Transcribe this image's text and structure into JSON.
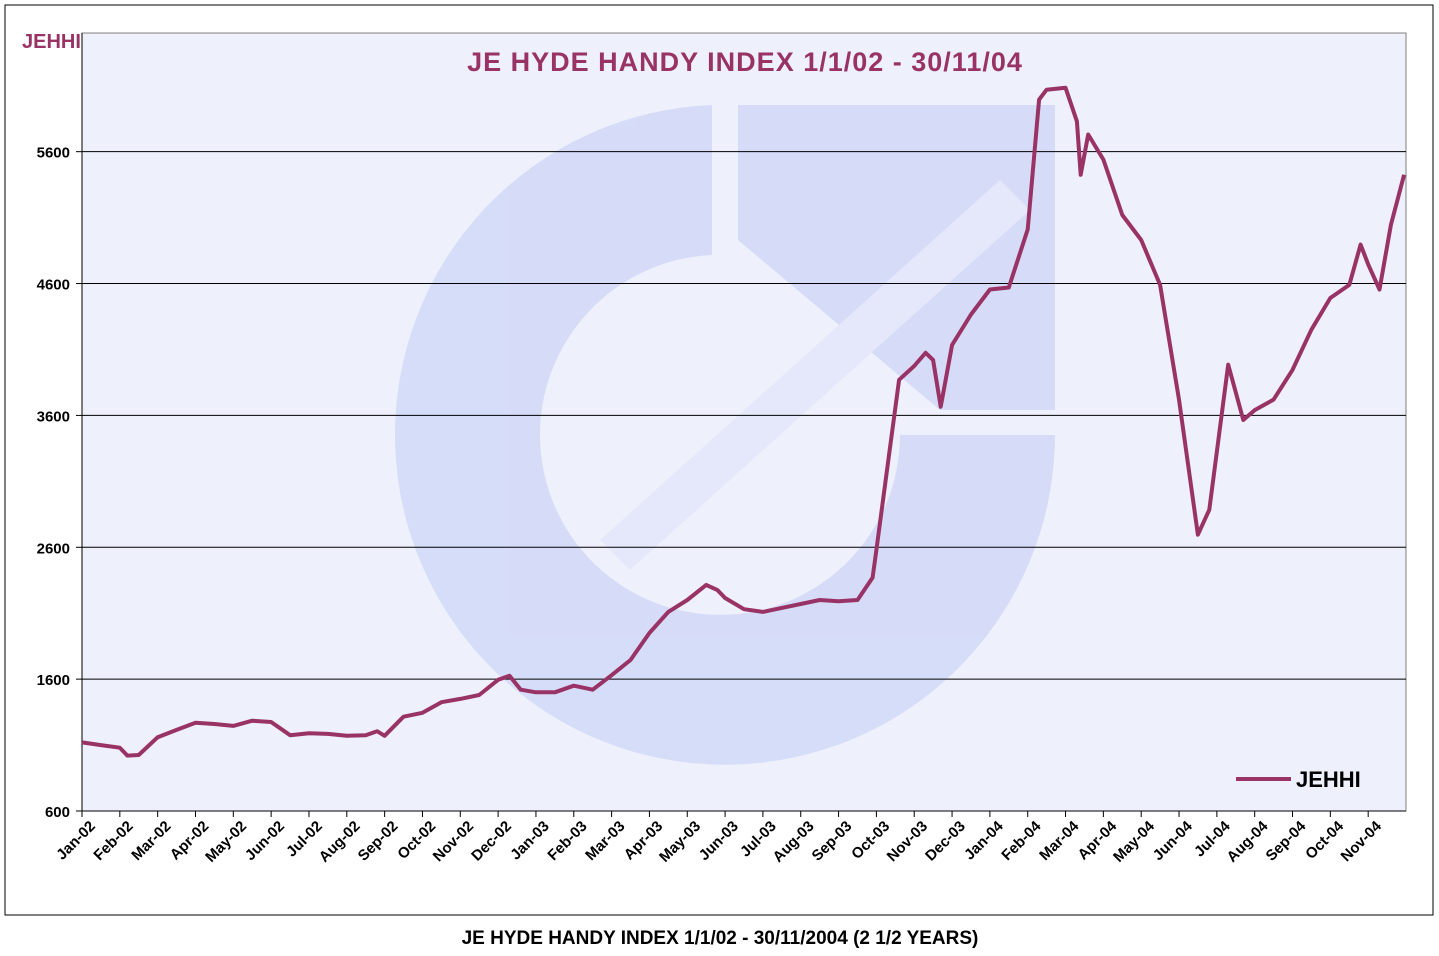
{
  "chart_data": {
    "type": "line",
    "title": "JE HYDE HANDY INDEX 1/1/02 - 30/11/04",
    "y_label": "JEHHI",
    "caption": "JE HYDE HANDY INDEX 1/1/02 - 30/11/2004 (2 1/2 YEARS)",
    "x": [
      0,
      0.5,
      1.0,
      1.2,
      1.5,
      2.0,
      2.5,
      3.0,
      3.5,
      4.0,
      4.5,
      5.0,
      5.5,
      6.0,
      6.5,
      7.0,
      7.5,
      7.8,
      8.0,
      8.5,
      9.0,
      9.5,
      10.0,
      10.5,
      11.0,
      11.3,
      11.6,
      12.0,
      12.5,
      13.0,
      13.5,
      14.0,
      14.5,
      15.0,
      15.5,
      16.0,
      16.5,
      16.8,
      17.0,
      17.5,
      18.0,
      18.5,
      19.0,
      19.5,
      20.0,
      20.5,
      20.9,
      21.0,
      21.3,
      21.6,
      22.0,
      22.3,
      22.5,
      22.7,
      23.0,
      23.5,
      24.0,
      24.5,
      25.0,
      25.3,
      25.5,
      26.0,
      26.3,
      26.4,
      26.6,
      27.0,
      27.5,
      28.0,
      28.5,
      29.0,
      29.5,
      29.8,
      30.3,
      30.7,
      31.0,
      31.5,
      32.0,
      32.5,
      33.0,
      33.5,
      33.8,
      34.0,
      34.3,
      34.6,
      34.95
    ],
    "series": [
      {
        "name": "JEHHI",
        "color": "#993366",
        "values": [
          1120,
          1100,
          1080,
          1020,
          1025,
          1160,
          1215,
          1270,
          1260,
          1245,
          1285,
          1275,
          1175,
          1190,
          1185,
          1170,
          1175,
          1205,
          1170,
          1315,
          1345,
          1425,
          1450,
          1480,
          1595,
          1625,
          1520,
          1500,
          1500,
          1550,
          1520,
          1630,
          1745,
          1950,
          2110,
          2200,
          2315,
          2275,
          2215,
          2130,
          2110,
          2140,
          2170,
          2200,
          2190,
          2200,
          2370,
          2580,
          3225,
          3870,
          3975,
          4075,
          4020,
          3665,
          4135,
          4365,
          4555,
          4570,
          5010,
          5995,
          6070,
          6085,
          5830,
          5425,
          5730,
          5540,
          5120,
          4930,
          4590,
          3720,
          2695,
          2885,
          3985,
          3565,
          3640,
          3720,
          3945,
          4250,
          4490,
          4590,
          4895,
          4745,
          4555,
          5045,
          5425
        ]
      }
    ],
    "xlim": [
      0,
      35
    ],
    "xticks": [
      {
        "value": 0,
        "label": "Jan-02"
      },
      {
        "value": 1,
        "label": "Feb-02"
      },
      {
        "value": 2,
        "label": "Mar-02"
      },
      {
        "value": 3,
        "label": "Apr-02"
      },
      {
        "value": 4,
        "label": "May-02"
      },
      {
        "value": 5,
        "label": "Jun-02"
      },
      {
        "value": 6,
        "label": "Jul-02"
      },
      {
        "value": 7,
        "label": "Aug-02"
      },
      {
        "value": 8,
        "label": "Sep-02"
      },
      {
        "value": 9,
        "label": "Oct-02"
      },
      {
        "value": 10,
        "label": "Nov-02"
      },
      {
        "value": 11,
        "label": "Dec-02"
      },
      {
        "value": 12,
        "label": "Jan-03"
      },
      {
        "value": 13,
        "label": "Feb-03"
      },
      {
        "value": 14,
        "label": "Mar-03"
      },
      {
        "value": 15,
        "label": "Apr-03"
      },
      {
        "value": 16,
        "label": "May-03"
      },
      {
        "value": 17,
        "label": "Jun-03"
      },
      {
        "value": 18,
        "label": "Jul-03"
      },
      {
        "value": 19,
        "label": "Aug-03"
      },
      {
        "value": 20,
        "label": "Sep-03"
      },
      {
        "value": 21,
        "label": "Oct-03"
      },
      {
        "value": 22,
        "label": "Nov-03"
      },
      {
        "value": 23,
        "label": "Dec-03"
      },
      {
        "value": 24,
        "label": "Jan-04"
      },
      {
        "value": 25,
        "label": "Feb-04"
      },
      {
        "value": 26,
        "label": "Mar-04"
      },
      {
        "value": 27,
        "label": "Apr-04"
      },
      {
        "value": 28,
        "label": "May-04"
      },
      {
        "value": 29,
        "label": "Jun-04"
      },
      {
        "value": 30,
        "label": "Jul-04"
      },
      {
        "value": 31,
        "label": "Aug-04"
      },
      {
        "value": 32,
        "label": "Sep-04"
      },
      {
        "value": 33,
        "label": "Oct-04"
      },
      {
        "value": 34,
        "label": "Nov-04"
      }
    ],
    "ylim": [
      600,
      6500
    ],
    "yticks": [
      600,
      1600,
      2600,
      3600,
      4600,
      5600
    ],
    "grid": true,
    "legend": "bottom-right"
  }
}
